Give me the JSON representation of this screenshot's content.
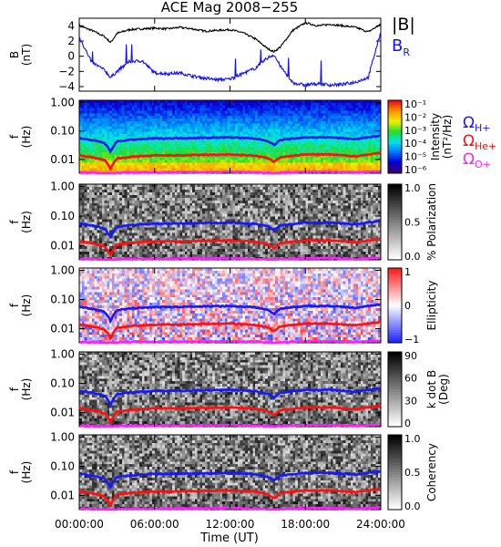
{
  "title": "ACE Mag 2008−255",
  "time_axis": {
    "label": "Time (UT)",
    "ticks": [
      "00:00:00",
      "06:00:00",
      "12:00:00",
      "18:00:00",
      "24:00:00"
    ]
  },
  "legend": {
    "b_total": "|B|",
    "b_r_main": "B",
    "b_r_sub": "R",
    "omega": "Ω",
    "h_sub": "H+",
    "he_sub": "He+",
    "o_sub": "O+"
  },
  "colors": {
    "b_total": "#000000",
    "b_r": "#1010ff",
    "omega_h": "#1818ff",
    "omega_he": "#ff1010",
    "omega_o": "#ff20ff"
  },
  "panels": [
    {
      "ylabel_1": "B",
      "ylabel_2": "(nT)",
      "cb_label": "",
      "cb_ticks": []
    },
    {
      "ylabel_1": "f",
      "ylabel_2": "(Hz)",
      "cb_label": "Intensity",
      "cb_label_2": "(nT²/Hz)",
      "cb_ticks": [
        "10⁻¹",
        "10⁻²",
        "10⁻³",
        "10⁻⁴",
        "10⁻⁵",
        "10⁻⁶"
      ]
    },
    {
      "ylabel_1": "f",
      "ylabel_2": "(Hz)",
      "cb_label": "% Polarization",
      "cb_ticks": [
        "1.0",
        "0.5",
        "0.0"
      ]
    },
    {
      "ylabel_1": "f",
      "ylabel_2": "(Hz)",
      "cb_label": "Ellipticity",
      "cb_ticks": [
        "1",
        "0",
        "−1"
      ]
    },
    {
      "ylabel_1": "f",
      "ylabel_2": "(Hz)",
      "cb_label": "k dot B",
      "cb_label_2": "(Deg)",
      "cb_ticks": [
        "90",
        "60",
        "30",
        "0"
      ]
    },
    {
      "ylabel_1": "f",
      "ylabel_2": "(Hz)",
      "cb_label": "Coherency",
      "cb_ticks": [
        "1.0",
        "0.5",
        "0.0"
      ]
    }
  ],
  "chart_data": [
    {
      "type": "line",
      "panel": "magnetic field",
      "ylabel": "B (nT)",
      "yticks": [
        "4",
        "2",
        "0",
        "−2",
        "−4"
      ],
      "ylim": [
        -4.6,
        5.0
      ],
      "x_hours": [
        0,
        1,
        2,
        2.5,
        3,
        4,
        5,
        6,
        7,
        8,
        9,
        10,
        11,
        12,
        13,
        14,
        15,
        15.5,
        16,
        17,
        18,
        19,
        20,
        21,
        22,
        23,
        24
      ],
      "series": [
        {
          "name": "|B|",
          "values": [
            4.0,
            3.4,
            2.6,
            1.8,
            3.0,
            3.5,
            3.6,
            3.7,
            3.6,
            3.8,
            3.6,
            3.3,
            3.4,
            3.5,
            3.1,
            2.3,
            1.0,
            0.6,
            1.2,
            3.4,
            4.4,
            4.0,
            4.2,
            4.0,
            3.8,
            3.2,
            4.2
          ]
        },
        {
          "name": "B_R",
          "values": [
            2.5,
            -0.8,
            -1.8,
            -2.8,
            -2.0,
            -0.7,
            -0.6,
            -2.2,
            -2.3,
            -2.2,
            -2.6,
            -2.9,
            -3.1,
            -3.0,
            -2.3,
            -1.6,
            -0.2,
            0.2,
            -1.3,
            -3.5,
            -3.8,
            -3.6,
            -3.8,
            -3.7,
            -3.4,
            -2.8,
            3.2
          ]
        }
      ]
    },
    {
      "type": "heatmap",
      "panels": [
        "Intensity",
        "% Polarization",
        "Ellipticity",
        "k dot B",
        "Coherency"
      ],
      "ylabel": "f (Hz)",
      "yticks": [
        "1.00",
        "0.10",
        "0.01"
      ],
      "yscale": "log",
      "ylim": [
        0.0033,
        1.2
      ],
      "x_hours": [
        0,
        1,
        2,
        2.5,
        3,
        4,
        6,
        8,
        10,
        12,
        14,
        15,
        15.5,
        16,
        18,
        20,
        22,
        24
      ],
      "overlay_series": [
        {
          "name": "Ω H+",
          "values": [
            0.056,
            0.048,
            0.038,
            0.018,
            0.043,
            0.049,
            0.055,
            0.056,
            0.058,
            0.06,
            0.054,
            0.045,
            0.032,
            0.048,
            0.06,
            0.06,
            0.052,
            0.068
          ]
        },
        {
          "name": "Ω He+",
          "values": [
            0.014,
            0.012,
            0.0095,
            0.0045,
            0.0108,
            0.0122,
            0.0138,
            0.014,
            0.0145,
            0.015,
            0.0135,
            0.0112,
            0.008,
            0.012,
            0.015,
            0.015,
            0.013,
            0.017
          ]
        },
        {
          "name": "Ω O+",
          "values": [
            0.0035,
            0.0034,
            0.0033,
            0.0033,
            0.0034,
            0.0035,
            0.0035,
            0.0036,
            0.0036,
            0.0037,
            0.0035,
            0.0034,
            0.0033,
            0.0034,
            0.0037,
            0.0037,
            0.0035,
            0.0038
          ]
        }
      ]
    }
  ]
}
